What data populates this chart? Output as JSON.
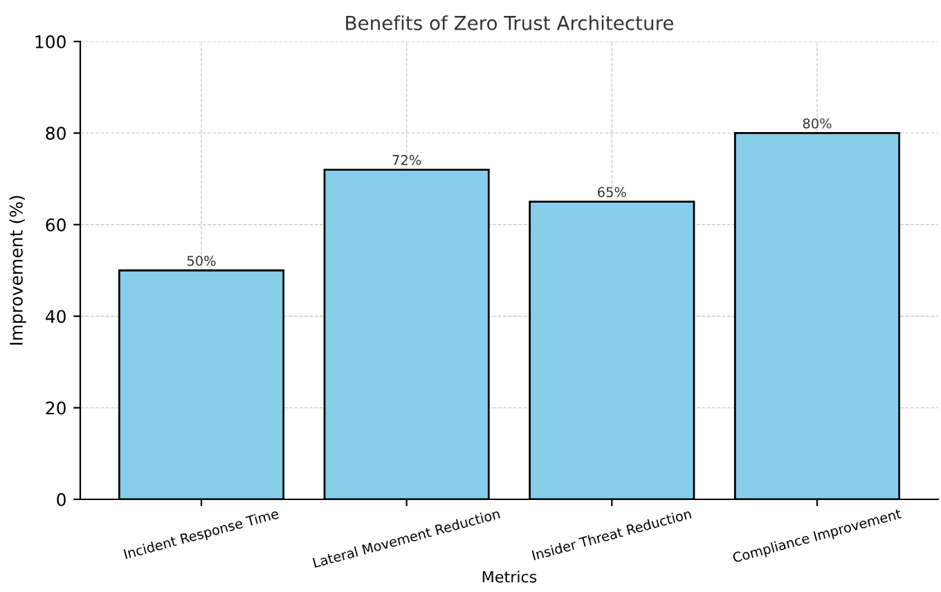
{
  "chart_data": {
    "type": "bar",
    "title": "Benefits of Zero Trust Architecture",
    "xlabel": "Metrics",
    "ylabel": "Improvement (%)",
    "categories": [
      "Incident Response Time",
      "Lateral Movement Reduction",
      "Insider Threat Reduction",
      "Compliance Improvement"
    ],
    "values": [
      50,
      72,
      65,
      80
    ],
    "value_labels": [
      "50%",
      "72%",
      "65%",
      "80%"
    ],
    "color": "#87ceeb",
    "ylim": [
      0,
      100
    ],
    "yticks": [
      0,
      20,
      40,
      60,
      80,
      100
    ],
    "grid": true
  }
}
